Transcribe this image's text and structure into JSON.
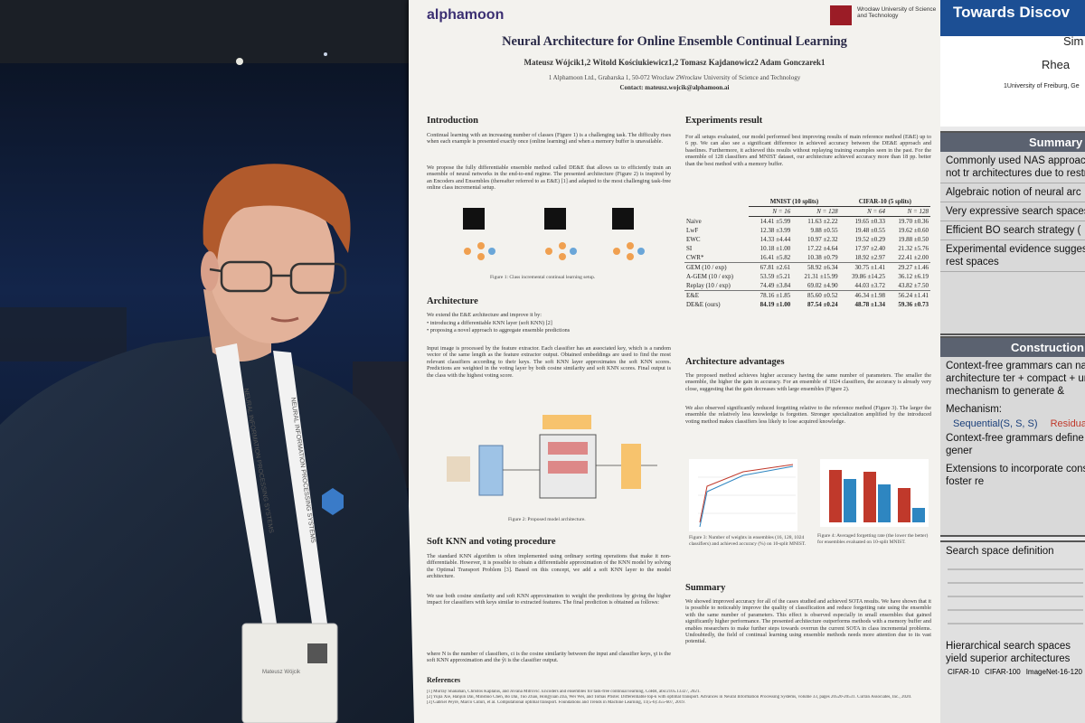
{
  "left_poster": {
    "logo": "alphamoon",
    "university": "Wrocław University of Science and Technology",
    "title": "Neural Architecture for Online Ensemble Continual Learning",
    "authors": "Mateusz Wójcik1,2 Witold Kościukiewicz1,2 Tomasz Kajdanowicz2 Adam Gonczarek1",
    "affiliations": "1 Alphamoon Ltd., Grabarska 1, 50-072 Wrocław 2Wrocław University of Science and Technology",
    "contact": "Contact: mateusz.wojcik@alphamoon.ai",
    "introduction": {
      "heading": "Introduction",
      "text": "Continual learning with an increasing number of classes (Figure 1) is a challenging task. The difficulty rises when each example is presented exactly once (online learning) and when a memory buffer is unavailable.",
      "text2": "We propose the fully differentiable ensemble method called DE&E that allows us to efficiently train an ensemble of neural networks in the end-to-end regime. The presented architecture (Figure 2) is inspired by an Encoders and Ensembles (thereafter referred to as E&E) [1] and adapted to the most challenging task-free online class incremental setup.",
      "figure_caption": "Figure 1: Class incremental continual learning setup."
    },
    "architecture": {
      "heading": "Architecture",
      "text": "We extend the E&E architecture and improve it by:",
      "bullets": [
        "• introducing a differentiable KNN layer (soft KNN) [2]",
        "• proposing a novel approach to aggregate ensemble predictions"
      ],
      "text2": "Input image is processed by the feature extractor. Each classifier has an associated key, which is a random vector of the same length as the feature extractor output. Obtained embeddings are used to find the most relevant classifiers according to their keys. The soft KNN layer approximates the soft KNN scores. Predictions are weighted in the voting layer by both cosine similarity and soft KNN scores. Final output is the class with the highest voting score.",
      "figure_caption": "Figure 2: Proposed model architecture."
    },
    "soft_knn": {
      "heading": "Soft KNN and voting procedure",
      "text": "The standard KNN algorithm is often implemented using ordinary sorting operations that make it non-differentiable. However, it is possible to obtain a differentiable approximation of the KNN model by solving the Optimal Transport Problem [3]. Based on this concept, we add a soft KNN layer to the model architecture.",
      "text2": "We use both cosine similarity and soft KNN approximation to weight the predictions by giving the higher impact for classifiers with keys similar to extracted features. The final prediction is obtained as follows:",
      "text3": "where N is the number of classifiers, ci is the cosine similarity between the input and classifier keys, γi is the soft KNN approximation and the ŷi is the classifier output."
    },
    "references": {
      "heading": "References",
      "items": [
        "[1] Murray Shanahan, Christos Kaplanis, and Jovana Mitrović. Encoders and ensembles for task-free continual learning. CoRR, abs/2105.13327, 2021.",
        "[2] Yujia Xie, Hanjun Dai, Minshuo Chen, Bo Dai, Tuo Zhao, Hongyuan Zha, Wei Wei, and Tomas Pfister. Differentiable top-k with optimal transport. Advances in Neural Information Processing Systems, volume 33, pages 20520-20531. Curran Associates, Inc., 2020.",
        "[3] Gabriel Peyré, Marco Cuturi, et al. Computational optimal transport. Foundations and Trends in Machine Learning, 11(5-6):355-607, 2019."
      ]
    },
    "experiments": {
      "heading": "Experiments result",
      "text": "For all setups evaluated, our model performed best improving results of main reference method (E&E) up to 6 pp. We can also see a significant difference in achieved accuracy between the DE&E approach and baselines. Furthermore, it achieved this results without replaying training examples seen in the past. For the ensemble of 128 classifiers and MNIST dataset, our architecture achieved accuracy more than 18 pp. better than the best method with a memory buffer."
    },
    "table": {
      "groups": [
        "MNIST (10 splits)",
        "CIFAR-10 (5 splits)"
      ],
      "columns": [
        "N = 16",
        "N = 128",
        "N = 64",
        "N = 128"
      ],
      "rows": [
        [
          "Naive",
          "14.41 ±5.99",
          "11.63 ±2.22",
          "19.65 ±0.33",
          "19.70 ±0.36"
        ],
        [
          "LwF",
          "12.38 ±3.99",
          "9.88 ±0.55",
          "19.48 ±0.55",
          "19.62 ±0.60"
        ],
        [
          "EWC",
          "14.33 ±4.44",
          "10.97 ±2.32",
          "19.52 ±0.29",
          "19.88 ±0.50"
        ],
        [
          "SI",
          "10.18 ±1.00",
          "17.22 ±4.64",
          "17.97 ±2.40",
          "21.32 ±5.76"
        ],
        [
          "CWR*",
          "16.41 ±5.82",
          "10.38 ±0.79",
          "18.92 ±2.97",
          "22.41 ±2.00"
        ],
        [
          "GEM (10 / exp)",
          "67.81 ±2.61",
          "58.92 ±6.34",
          "30.75 ±1.41",
          "29.27 ±1.46"
        ],
        [
          "A-GEM (10 / exp)",
          "53.59 ±5.21",
          "21.31 ±15.99",
          "39.86 ±14.25",
          "36.12 ±6.19"
        ],
        [
          "Replay (10 / exp)",
          "74.49 ±3.84",
          "69.02 ±4.90",
          "44.03 ±3.72",
          "43.82 ±7.50"
        ],
        [
          "E&E",
          "78.16 ±1.85",
          "85.60 ±0.52",
          "46.34 ±1.98",
          "56.24 ±1.41"
        ],
        [
          "DE&E (ours)",
          "84.19 ±1.00",
          "87.54 ±0.24",
          "48.78 ±1.34",
          "59.36 ±0.73"
        ]
      ]
    },
    "advantages": {
      "heading": "Architecture advantages",
      "text": "The proposed method achieves higher accuracy having the same number of parameters. The smaller the ensemble, the higher the gain in accuracy. For an ensemble of 1024 classifiers, the accuracy is already very close, suggesting that the gain decreases with large ensembles (Figure 2).",
      "text2": "We also observed significantly reduced forgetting relative to the reference method (Figure 3). The larger the ensemble the relatively less knowledge is forgotten. Stronger specialization amplified by the introduced voting method makes classifiers less likely to lose acquired knowledge.",
      "figure3_caption": "Figure 3: Number of weights in ensembles (16, 128, 1024 classifiers) and achieved accuracy (%) on 10-split MNIST.",
      "figure4_caption": "Figure 4: Averaged forgetting rate (the lower the better) for ensembles evaluated on 10-split MNIST."
    },
    "summary": {
      "heading": "Summary",
      "text": "We showed improved accuracy for all of the cases studied and achieved SOTA results. We have shown that it is possible to noticeably improve the quality of classification and reduce forgetting rate using the ensemble with the same number of parameters. This effect is observed especially in small ensembles that gained significantly higher performance. The presented architecture outperforms methods with a memory buffer and enables researchers to make further steps towards overrun the current SOTA in class incremental problems. Undoubtedly, the field of continual learning using ensemble methods needs more attention due to its vast potential."
    }
  },
  "right_poster": {
    "title": "Towards Discov",
    "author_line1": "Sim",
    "author_line2": "Rhea",
    "affiliation": "1University of Freiburg, Ge",
    "summary_heading": "Summary",
    "summary_items": [
      "Commonly used NAS approac performing but (typically) not tr architectures due to restrictive",
      "Algebraic notion of neural arc",
      "Very expressive search spaces context-free grammars",
      "Efficient BO search strategy (",
      "Experimental evidence sugges search should go beyond rest spaces"
    ],
    "construction_heading": "Construction",
    "construction_items": [
      "Context-free grammars can nat algebraic neural architecture ter + compact + unifying framework f + simple mechanism to generate &",
      "Mechanism:",
      "Context-free grammars define o architecture terms in their gener",
      "Extensions to incorporate constr channel) changes, and foster re"
    ],
    "mechanism_terms": [
      "Sequential(S, S, S)",
      "Residual(S,"
    ],
    "search_heading": "Search space definition",
    "search_footer": "Hierarchical search spaces yield superior architectures",
    "plot_titles": [
      "CIFAR-10",
      "CIFAR-100",
      "ImageNet-16-120"
    ]
  },
  "lanyard_text": "NEURAL INFORMATION PROCESSING SYSTEMS",
  "badge_name": "Mateusz Wójcik"
}
